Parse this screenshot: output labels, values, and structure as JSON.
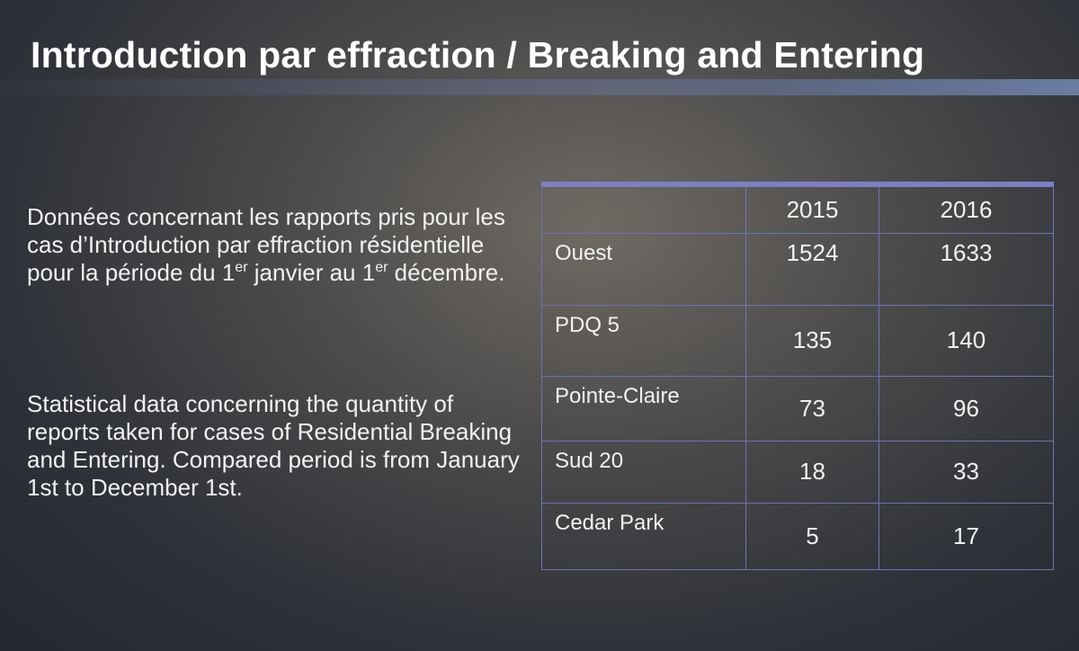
{
  "title": "Introduction par effraction / Breaking and Entering",
  "french_text": [
    "Données concernant les rapports pris pour les cas d’Introduction par effraction résidentielle pour la période du 1",
    "er",
    " janvier au 1",
    "er",
    " décembre."
  ],
  "english_text": "Statistical data concerning the quantity of reports taken for cases of Residential Breaking and Entering. Compared period is from January 1st to December 1st.",
  "table": {
    "columns": [
      "2015",
      "2016"
    ],
    "rows": [
      {
        "label": "Ouest",
        "values": [
          1524,
          1633
        ]
      },
      {
        "label": "PDQ 5",
        "values": [
          135,
          140
        ]
      },
      {
        "label": "Pointe-Claire",
        "values": [
          73,
          96
        ]
      },
      {
        "label": "Sud 20",
        "values": [
          18,
          33
        ]
      },
      {
        "label": "Cedar Park",
        "values": [
          5,
          17
        ]
      }
    ]
  }
}
